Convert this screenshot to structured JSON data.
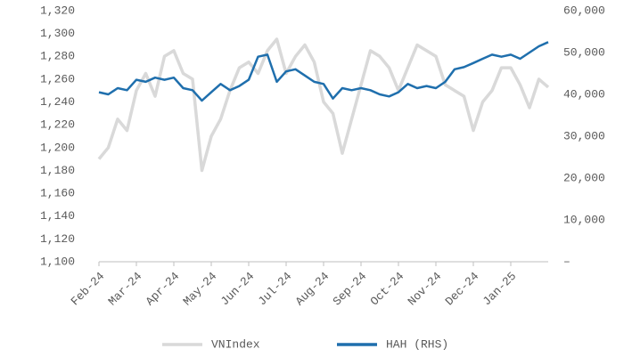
{
  "chart_data": {
    "type": "line",
    "categories": [
      "Feb-24",
      null,
      null,
      null,
      "Mar-24",
      null,
      null,
      null,
      "Apr-24",
      null,
      null,
      null,
      "May-24",
      null,
      null,
      null,
      "Jun-24",
      null,
      null,
      null,
      "Jul-24",
      null,
      null,
      null,
      "Aug-24",
      null,
      null,
      null,
      "Sep-24",
      null,
      null,
      null,
      "Oct-24",
      null,
      null,
      null,
      "Nov-24",
      null,
      null,
      null,
      "Dec-24",
      null,
      null,
      null,
      "Jan-25",
      null,
      null,
      null,
      null
    ],
    "series": [
      {
        "name": "VNIndex",
        "color": "#d9d9d9",
        "axis": "y",
        "values": [
          1190,
          1200,
          1225,
          1215,
          1250,
          1265,
          1245,
          1280,
          1285,
          1265,
          1260,
          1180,
          1210,
          1225,
          1250,
          1270,
          1275,
          1265,
          1285,
          1295,
          1265,
          1280,
          1290,
          1275,
          1240,
          1230,
          1195,
          1225,
          1255,
          1285,
          1280,
          1270,
          1250,
          1270,
          1290,
          1285,
          1280,
          1255,
          1250,
          1245,
          1215,
          1240,
          1250,
          1270,
          1270,
          1255,
          1235,
          1260,
          1253
        ]
      },
      {
        "name": "HAH (RHS)",
        "color": "#1f6fad",
        "axis": "y2",
        "values": [
          40500,
          40000,
          41500,
          41000,
          43500,
          43000,
          44000,
          43500,
          44000,
          41500,
          41000,
          38500,
          40500,
          42500,
          41000,
          42000,
          43500,
          49000,
          49500,
          43000,
          45500,
          46000,
          44500,
          43000,
          42500,
          39000,
          41500,
          41000,
          41500,
          41000,
          40000,
          39500,
          40500,
          42500,
          41500,
          42000,
          41500,
          43000,
          46000,
          46500,
          47500,
          48500,
          49500,
          49000,
          49500,
          48500,
          50000,
          51500,
          52500
        ]
      }
    ],
    "ylim": [
      1100,
      1320
    ],
    "yticks": [
      {
        "value": 1100,
        "label": "1,100"
      },
      {
        "value": 1120,
        "label": "1,120"
      },
      {
        "value": 1140,
        "label": "1,140"
      },
      {
        "value": 1160,
        "label": "1,160"
      },
      {
        "value": 1180,
        "label": "1,180"
      },
      {
        "value": 1200,
        "label": "1,200"
      },
      {
        "value": 1220,
        "label": "1,220"
      },
      {
        "value": 1240,
        "label": "1,240"
      },
      {
        "value": 1260,
        "label": "1,260"
      },
      {
        "value": 1280,
        "label": "1,280"
      },
      {
        "value": 1300,
        "label": "1,300"
      },
      {
        "value": 1320,
        "label": "1,320"
      }
    ],
    "y2lim": [
      0,
      60000
    ],
    "y2ticks": [
      {
        "value": 0,
        "label": "–"
      },
      {
        "value": 10000,
        "label": "10,000"
      },
      {
        "value": 20000,
        "label": "20,000"
      },
      {
        "value": 30000,
        "label": "30,000"
      },
      {
        "value": 40000,
        "label": "40,000"
      },
      {
        "value": 50000,
        "label": "50,000"
      },
      {
        "value": 60000,
        "label": "60,000"
      }
    ],
    "legend": "bottom"
  }
}
